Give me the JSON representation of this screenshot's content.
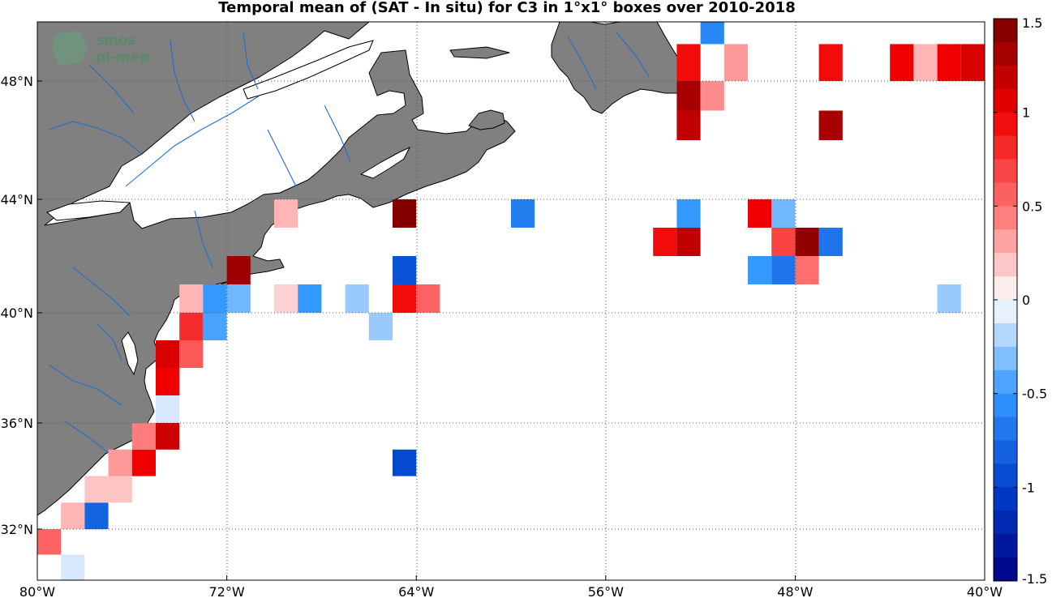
{
  "title": "Temporal mean of (SAT - In situ) for C3 in 1°x1° boxes over 2010-2018",
  "watermark": {
    "line1": "smos",
    "line2": "pi-mep"
  },
  "chart_data": {
    "type": "heatmap",
    "lon_range": [
      -80,
      -40
    ],
    "lat_range": [
      30,
      49.6
    ],
    "x_ticks": [
      {
        "value": -80,
        "label": "80°W"
      },
      {
        "value": -72,
        "label": "72°W"
      },
      {
        "value": -64,
        "label": "64°W"
      },
      {
        "value": -56,
        "label": "56°W"
      },
      {
        "value": -48,
        "label": "48°W"
      },
      {
        "value": -40,
        "label": "40°W"
      }
    ],
    "y_ticks": [
      {
        "value": 32,
        "label": "32°N"
      },
      {
        "value": 36,
        "label": "36°N"
      },
      {
        "value": 40,
        "label": "40°N"
      },
      {
        "value": 44,
        "label": "44°N"
      },
      {
        "value": 48,
        "label": "48°N"
      }
    ],
    "grid": true,
    "colorbar": {
      "range": [
        -1.5,
        1.5
      ],
      "ticks": [
        {
          "value": 1.5,
          "label": "1.5"
        },
        {
          "value": 1,
          "label": "1"
        },
        {
          "value": 0.5,
          "label": "0.5"
        },
        {
          "value": 0,
          "label": "0"
        },
        {
          "value": -0.5,
          "label": "-0.5"
        },
        {
          "value": -1,
          "label": "-1"
        },
        {
          "value": -1.5,
          "label": "-1.5"
        }
      ]
    },
    "cells": [
      {
        "lon": -79.5,
        "lat": 31.5,
        "value": 0.55
      },
      {
        "lon": -78.5,
        "lat": 30.5,
        "value": -0.1
      },
      {
        "lon": -78.5,
        "lat": 32.5,
        "value": 0.25
      },
      {
        "lon": -77.5,
        "lat": 32.5,
        "value": -0.8
      },
      {
        "lon": -77.5,
        "lat": 33.5,
        "value": 0.2
      },
      {
        "lon": -76.5,
        "lat": 33.5,
        "value": 0.2
      },
      {
        "lon": -76.5,
        "lat": 34.5,
        "value": 0.35
      },
      {
        "lon": -75.5,
        "lat": 34.5,
        "value": 1.0
      },
      {
        "lon": -75.5,
        "lat": 35.5,
        "value": 0.45
      },
      {
        "lon": -74.5,
        "lat": 35.5,
        "value": 1.15
      },
      {
        "lon": -74.5,
        "lat": 36.5,
        "value": -0.1
      },
      {
        "lon": -74.5,
        "lat": 37.5,
        "value": 1.0
      },
      {
        "lon": -74.5,
        "lat": 38.5,
        "value": 1.1
      },
      {
        "lon": -73.5,
        "lat": 38.5,
        "value": 0.6
      },
      {
        "lon": -73.5,
        "lat": 39.5,
        "value": 0.8
      },
      {
        "lon": -72.5,
        "lat": 39.5,
        "value": -0.45
      },
      {
        "lon": -73.5,
        "lat": 40.5,
        "value": 0.25
      },
      {
        "lon": -72.5,
        "lat": 40.5,
        "value": -0.5
      },
      {
        "lon": -71.5,
        "lat": 40.5,
        "value": -0.35
      },
      {
        "lon": -71.5,
        "lat": 41.5,
        "value": 1.35
      },
      {
        "lon": -69.5,
        "lat": 40.5,
        "value": 0.15
      },
      {
        "lon": -68.5,
        "lat": 40.5,
        "value": -0.5
      },
      {
        "lon": -69.5,
        "lat": 43.5,
        "value": 0.25
      },
      {
        "lon": -66.5,
        "lat": 40.5,
        "value": -0.25
      },
      {
        "lon": -65.5,
        "lat": 39.5,
        "value": -0.25
      },
      {
        "lon": -64.5,
        "lat": 40.5,
        "value": 0.95
      },
      {
        "lon": -63.5,
        "lat": 40.5,
        "value": 0.55
      },
      {
        "lon": -64.5,
        "lat": 41.5,
        "value": -0.9
      },
      {
        "lon": -64.5,
        "lat": 43.5,
        "value": 1.45
      },
      {
        "lon": -64.5,
        "lat": 34.5,
        "value": -0.95
      },
      {
        "lon": -59.5,
        "lat": 43.5,
        "value": -0.65
      },
      {
        "lon": -53.5,
        "lat": 42.5,
        "value": 0.95
      },
      {
        "lon": -52.5,
        "lat": 42.5,
        "value": 1.2
      },
      {
        "lon": -52.5,
        "lat": 43.5,
        "value": -0.5
      },
      {
        "lon": -52.5,
        "lat": 46.5,
        "value": 1.2
      },
      {
        "lon": -52.5,
        "lat": 47.5,
        "value": 1.3
      },
      {
        "lon": -52.5,
        "lat": 48.5,
        "value": 0.95
      },
      {
        "lon": -51.5,
        "lat": 47.5,
        "value": 0.4
      },
      {
        "lon": -50.5,
        "lat": 48.5,
        "value": 0.35
      },
      {
        "lon": -51.5,
        "lat": 49.5,
        "value": -0.6
      },
      {
        "lon": -49.5,
        "lat": 43.5,
        "value": 1.0
      },
      {
        "lon": -48.5,
        "lat": 43.5,
        "value": -0.35
      },
      {
        "lon": -48.5,
        "lat": 42.5,
        "value": 0.7
      },
      {
        "lon": -47.5,
        "lat": 42.5,
        "value": 1.4
      },
      {
        "lon": -46.5,
        "lat": 42.5,
        "value": -0.7
      },
      {
        "lon": -49.5,
        "lat": 41.5,
        "value": -0.5
      },
      {
        "lon": -48.5,
        "lat": 41.5,
        "value": -0.7
      },
      {
        "lon": -47.5,
        "lat": 41.5,
        "value": 0.5
      },
      {
        "lon": -46.5,
        "lat": 46.5,
        "value": 1.3
      },
      {
        "lon": -46.5,
        "lat": 48.5,
        "value": 0.95
      },
      {
        "lon": -43.5,
        "lat": 48.5,
        "value": 1.0
      },
      {
        "lon": -42.5,
        "lat": 48.5,
        "value": 0.25
      },
      {
        "lon": -41.5,
        "lat": 48.5,
        "value": 1.0
      },
      {
        "lon": -40.5,
        "lat": 48.5,
        "value": 1.1
      },
      {
        "lon": -41.5,
        "lat": 40.5,
        "value": -0.25
      }
    ]
  }
}
